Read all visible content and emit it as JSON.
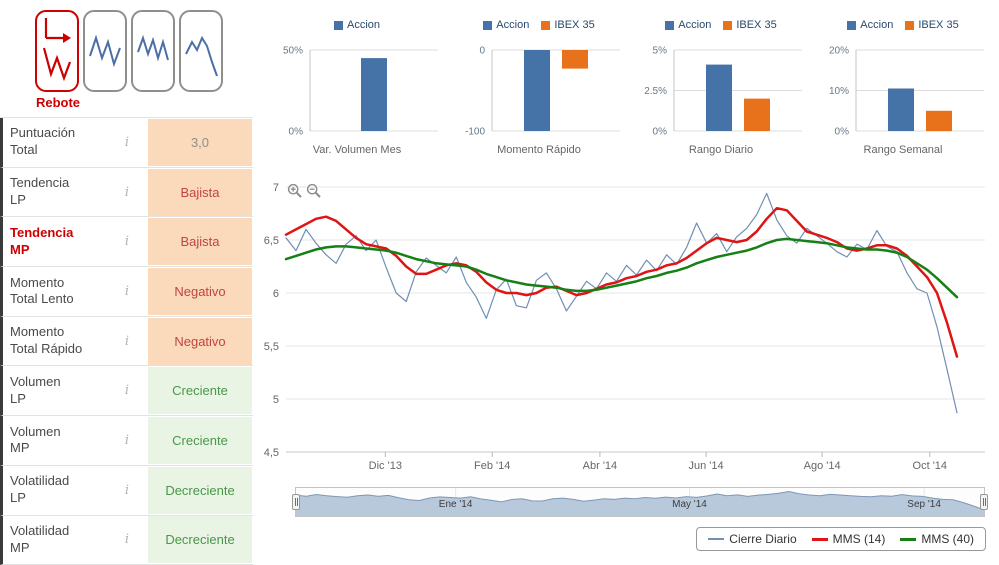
{
  "patterns": {
    "active_label": "Rebote"
  },
  "icons": {
    "info": "i"
  },
  "colors": {
    "accent_blue": "#4572a7",
    "accent_orange": "#e8711c",
    "close_line": "#6f8fb3",
    "mms14_red": "#e01414",
    "mms40_green": "#158015",
    "tone_orange_bg": "#fbd9bb",
    "tone_green_bg": "#e9f4e4",
    "negative_text": "#c1453f",
    "positive_text": "#47984a",
    "pattern_active": "#cc0000"
  },
  "indicators": {
    "rows": [
      {
        "label1": "Puntuación",
        "label2": "Total",
        "value": "3,0",
        "tone": "orange"
      },
      {
        "label1": "Tendencia",
        "label2": "LP",
        "value": "Bajista",
        "tone": "orange"
      },
      {
        "label1": "Tendencia",
        "label2": "MP",
        "value": "Bajista",
        "tone": "orange",
        "highlight": true
      },
      {
        "label1": "Momento",
        "label2": "Total Lento",
        "value": "Negativo",
        "tone": "orange"
      },
      {
        "label1": "Momento",
        "label2": "Total Rápido",
        "value": "Negativo",
        "tone": "orange"
      },
      {
        "label1": "Volumen",
        "label2": "LP",
        "value": "Creciente",
        "tone": "green"
      },
      {
        "label1": "Volumen",
        "label2": "MP",
        "value": "Creciente",
        "tone": "green"
      },
      {
        "label1": "Volatilidad",
        "label2": "LP",
        "value": "Decreciente",
        "tone": "green"
      },
      {
        "label1": "Volatilidad",
        "label2": "MP",
        "value": "Decreciente",
        "tone": "green"
      }
    ]
  },
  "chart_data": [
    {
      "id": "var-volumen-mes",
      "type": "bar",
      "title": "Var. Volumen Mes",
      "ylim": [
        0,
        50
      ],
      "yticks": [
        {
          "v": 50,
          "label": "50%"
        },
        {
          "v": 0,
          "label": "0%"
        }
      ],
      "series": [
        {
          "name": "Accion",
          "value": 45,
          "color": "#4572a7"
        }
      ]
    },
    {
      "id": "momento-rapido",
      "type": "bar",
      "title": "Momento Rápido",
      "ylim": [
        -100,
        0
      ],
      "yticks": [
        {
          "v": 0,
          "label": "0"
        },
        {
          "v": -100,
          "label": "-100"
        }
      ],
      "series": [
        {
          "name": "Accion",
          "value": -100,
          "color": "#4572a7"
        },
        {
          "name": "IBEX 35",
          "value": -23,
          "color": "#e8711c"
        }
      ]
    },
    {
      "id": "rango-diario",
      "type": "bar",
      "title": "Rango Diario",
      "ylim": [
        0,
        5
      ],
      "yticks": [
        {
          "v": 5,
          "label": "5%"
        },
        {
          "v": 2.5,
          "label": "2.5%"
        },
        {
          "v": 0,
          "label": "0%"
        }
      ],
      "series": [
        {
          "name": "Accion",
          "value": 4.1,
          "color": "#4572a7"
        },
        {
          "name": "IBEX 35",
          "value": 2.0,
          "color": "#e8711c"
        }
      ]
    },
    {
      "id": "rango-semanal",
      "type": "bar",
      "title": "Rango Semanal",
      "ylim": [
        0,
        20
      ],
      "yticks": [
        {
          "v": 20,
          "label": "20%"
        },
        {
          "v": 10,
          "label": "10%"
        },
        {
          "v": 0,
          "label": "0%"
        }
      ],
      "series": [
        {
          "name": "Accion",
          "value": 10.5,
          "color": "#4572a7"
        },
        {
          "name": "IBEX 35",
          "value": 5,
          "color": "#e8711c"
        }
      ]
    },
    {
      "id": "price-chart",
      "type": "line",
      "ylim": [
        4.5,
        7.0
      ],
      "x_span": 0.96,
      "yticks": [
        {
          "v": 7,
          "label": "7"
        },
        {
          "v": 6.5,
          "label": "6,5"
        },
        {
          "v": 6,
          "label": "6"
        },
        {
          "v": 5.5,
          "label": "5,5"
        },
        {
          "v": 5,
          "label": "5"
        },
        {
          "v": 4.5,
          "label": "4,5"
        }
      ],
      "xticks": [
        {
          "p": 0.142,
          "label": "Dic '13"
        },
        {
          "p": 0.295,
          "label": "Feb '14"
        },
        {
          "p": 0.449,
          "label": "Abr '14"
        },
        {
          "p": 0.601,
          "label": "Jun '14"
        },
        {
          "p": 0.767,
          "label": "Ago '14"
        },
        {
          "p": 0.921,
          "label": "Oct '14"
        }
      ],
      "series": [
        {
          "name": "Cierre Diario",
          "color": "#6f8fb3",
          "width": 1.2,
          "values": [
            6.52,
            6.4,
            6.6,
            6.47,
            6.36,
            6.28,
            6.46,
            6.54,
            6.4,
            6.5,
            6.24,
            6.0,
            5.92,
            6.2,
            6.33,
            6.26,
            6.19,
            6.34,
            6.1,
            5.96,
            5.76,
            6.03,
            6.13,
            5.88,
            5.86,
            6.12,
            6.19,
            6.04,
            5.83,
            5.97,
            6.11,
            6.04,
            6.19,
            6.11,
            6.26,
            6.17,
            6.31,
            6.21,
            6.36,
            6.27,
            6.43,
            6.66,
            6.47,
            6.56,
            6.39,
            6.53,
            6.61,
            6.74,
            6.94,
            6.69,
            6.54,
            6.47,
            6.61,
            6.54,
            6.47,
            6.39,
            6.34,
            6.46,
            6.41,
            6.59,
            6.44,
            6.39,
            6.19,
            6.04,
            6.0,
            5.68,
            5.28,
            4.87
          ]
        },
        {
          "name": "MMS (14)",
          "color": "#e01414",
          "width": 2.5,
          "values": [
            6.55,
            6.6,
            6.65,
            6.7,
            6.72,
            6.68,
            6.6,
            6.52,
            6.46,
            6.44,
            6.42,
            6.35,
            6.25,
            6.18,
            6.18,
            6.22,
            6.26,
            6.28,
            6.26,
            6.2,
            6.1,
            6.03,
            6.0,
            6.0,
            5.98,
            6.0,
            6.05,
            6.06,
            6.02,
            5.98,
            6.0,
            6.04,
            6.08,
            6.1,
            6.14,
            6.16,
            6.2,
            6.22,
            6.26,
            6.28,
            6.33,
            6.4,
            6.47,
            6.52,
            6.5,
            6.48,
            6.5,
            6.58,
            6.7,
            6.8,
            6.78,
            6.68,
            6.58,
            6.55,
            6.52,
            6.48,
            6.42,
            6.4,
            6.42,
            6.45,
            6.45,
            6.42,
            6.35,
            6.25,
            6.15,
            6.0,
            5.72,
            5.4
          ]
        },
        {
          "name": "MMS (40)",
          "color": "#158015",
          "width": 2.5,
          "values": [
            6.32,
            6.35,
            6.38,
            6.41,
            6.43,
            6.44,
            6.44,
            6.43,
            6.42,
            6.41,
            6.4,
            6.38,
            6.35,
            6.32,
            6.3,
            6.28,
            6.27,
            6.26,
            6.25,
            6.22,
            6.18,
            6.15,
            6.12,
            6.1,
            6.08,
            6.07,
            6.06,
            6.05,
            6.03,
            6.02,
            6.02,
            6.03,
            6.05,
            6.07,
            6.09,
            6.11,
            6.14,
            6.16,
            6.19,
            6.21,
            6.24,
            6.28,
            6.31,
            6.34,
            6.36,
            6.38,
            6.4,
            6.43,
            6.47,
            6.5,
            6.51,
            6.5,
            6.49,
            6.48,
            6.47,
            6.45,
            6.43,
            6.42,
            6.41,
            6.41,
            6.4,
            6.38,
            6.34,
            6.28,
            6.22,
            6.14,
            6.05,
            5.96
          ]
        }
      ]
    },
    {
      "id": "navigator",
      "type": "area",
      "series_ref": "Cierre Diario",
      "xticks": [
        {
          "p": 0.232,
          "label": "Ene '14"
        },
        {
          "p": 0.572,
          "label": "May '14"
        },
        {
          "p": 0.913,
          "label": "Sep '14"
        }
      ]
    }
  ]
}
